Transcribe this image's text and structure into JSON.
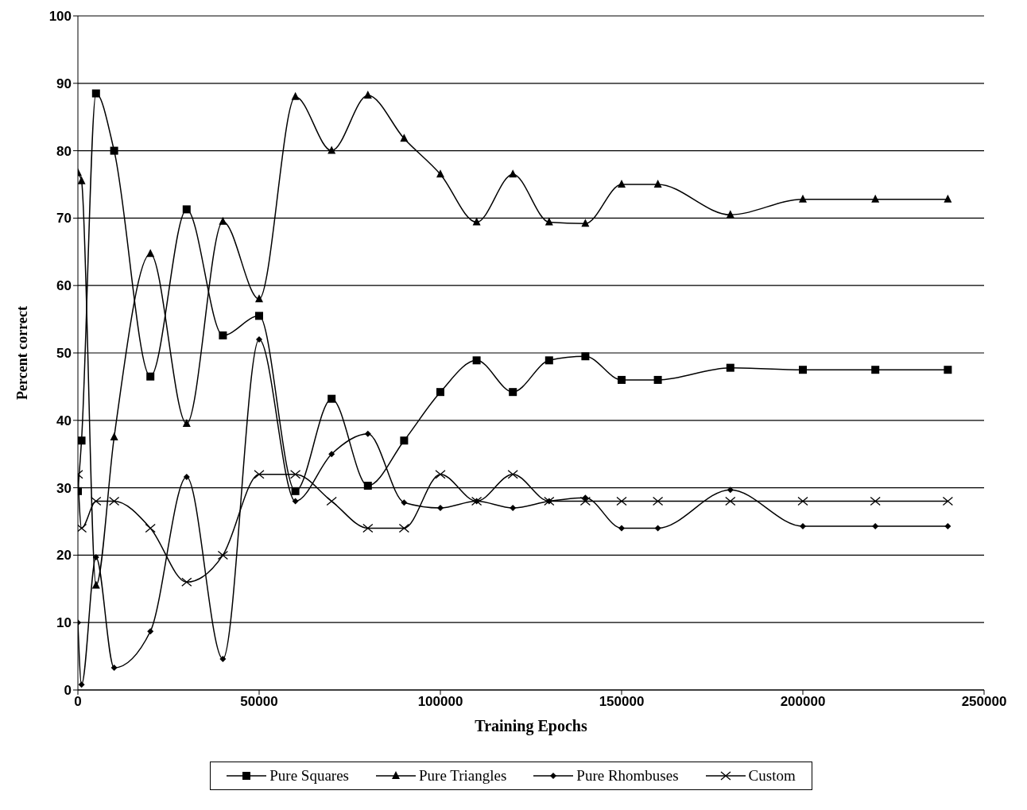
{
  "chart_data": {
    "type": "line",
    "xlabel": "Training Epochs",
    "ylabel": "Percent correct",
    "xlim": [
      0,
      250000
    ],
    "xticks": [
      0,
      50000,
      100000,
      150000,
      200000,
      250000
    ],
    "ylim": [
      0,
      100
    ],
    "yticks": [
      0,
      10,
      20,
      30,
      40,
      50,
      60,
      70,
      80,
      90,
      100
    ],
    "grid": "y",
    "legend": "bottom",
    "x": [
      0,
      1000,
      5000,
      10000,
      20000,
      30000,
      40000,
      50000,
      60000,
      70000,
      80000,
      90000,
      100000,
      110000,
      120000,
      130000,
      140000,
      150000,
      160000,
      180000,
      200000,
      220000,
      240000
    ],
    "series": [
      {
        "name": "Pure Squares",
        "color": "#000000",
        "marker": "square",
        "values": [
          29.5,
          37,
          88.5,
          80,
          46.5,
          71.3,
          52.6,
          55.5,
          29.5,
          43.2,
          30.3,
          37,
          44.2,
          48.9,
          44.2,
          48.9,
          49.5,
          46,
          46,
          47.8,
          47.5,
          47.5,
          47.5
        ]
      },
      {
        "name": "Pure Triangles",
        "color": "#000000",
        "marker": "triangle",
        "values": [
          76.7,
          75.5,
          15.5,
          37.5,
          64.7,
          39.5,
          69.5,
          58,
          88,
          80,
          88.2,
          81.8,
          76.5,
          69.4,
          76.5,
          69.4,
          69.2,
          75,
          75,
          70.5,
          72.8,
          72.8,
          72.8
        ]
      },
      {
        "name": "Pure Rhombuses",
        "color": "#000000",
        "marker": "diamond",
        "values": [
          10,
          0.8,
          19.7,
          3.3,
          8.7,
          31.6,
          4.6,
          52,
          28,
          35,
          38,
          27.8,
          27,
          28,
          27,
          28,
          28.5,
          24,
          24,
          29.7,
          24.3,
          24.3,
          24.3
        ]
      },
      {
        "name": "Custom",
        "color": "#000000",
        "marker": "cross",
        "values": [
          32,
          24,
          28,
          28,
          24,
          16,
          20,
          32,
          32,
          28,
          24,
          24,
          32,
          28,
          32,
          28,
          28,
          28,
          28,
          28,
          28,
          28,
          28
        ]
      }
    ]
  }
}
